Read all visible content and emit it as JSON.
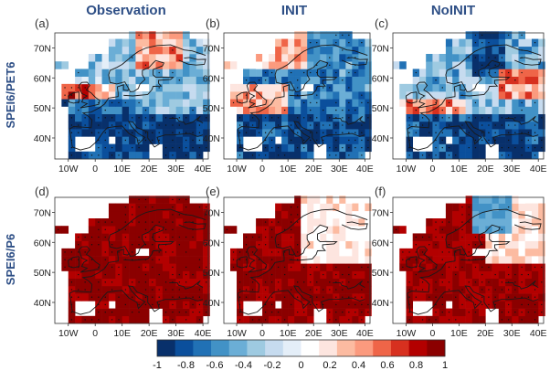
{
  "chart_data": {
    "type": "heatmap",
    "column_titles": [
      "Observation",
      "INIT",
      "NoINIT"
    ],
    "row_labels": [
      "SPEI6/PET6",
      "SPEI6/P6"
    ],
    "panel_letters": [
      "(a)",
      "(b)",
      "(c)",
      "(d)",
      "(e)",
      "(f)"
    ],
    "x_ticks": [
      "10W",
      "0",
      "10E",
      "20E",
      "30E",
      "40E"
    ],
    "x_tick_values": [
      -10,
      0,
      10,
      20,
      30,
      40
    ],
    "y_ticks": [
      "40N",
      "50N",
      "60N",
      "70N"
    ],
    "y_tick_values": [
      40,
      50,
      60,
      70
    ],
    "lon_range": [
      -15,
      42
    ],
    "lat_range": [
      33,
      75
    ],
    "colorbar": {
      "ticks": [
        "-1",
        "-0.8",
        "-0.6",
        "-0.4",
        "-0.2",
        "0",
        "0.2",
        "0.4",
        "0.6",
        "0.8",
        "1"
      ],
      "range": [
        -1,
        1
      ],
      "colors": [
        "#08306b",
        "#0b4f9c",
        "#2171b5",
        "#4292c6",
        "#6baed6",
        "#9ecae1",
        "#c6dbef",
        "#e4eef8",
        "#ffffff",
        "#fde5df",
        "#fcbba1",
        "#fb9a7e",
        "#ef6548",
        "#d7301f",
        "#b30000",
        "#8b0000"
      ]
    },
    "panels": [
      {
        "id": "a",
        "variable": "SPEI6/PET6",
        "source": "Observation",
        "pattern": "obs_pet",
        "mean_value": -0.35
      },
      {
        "id": "b",
        "variable": "SPEI6/PET6",
        "source": "INIT",
        "pattern": "init_pet",
        "mean_value": -0.45
      },
      {
        "id": "c",
        "variable": "SPEI6/PET6",
        "source": "NoINIT",
        "pattern": "noinit_pet",
        "mean_value": -0.4
      },
      {
        "id": "d",
        "variable": "SPEI6/P6",
        "source": "Observation",
        "pattern": "obs_p",
        "mean_value": 0.9
      },
      {
        "id": "e",
        "variable": "SPEI6/P6",
        "source": "INIT",
        "pattern": "init_p",
        "mean_value": 0.75
      },
      {
        "id": "f",
        "variable": "SPEI6/P6",
        "source": "NoINIT",
        "pattern": "noinit_p",
        "mean_value": 0.72
      }
    ]
  }
}
